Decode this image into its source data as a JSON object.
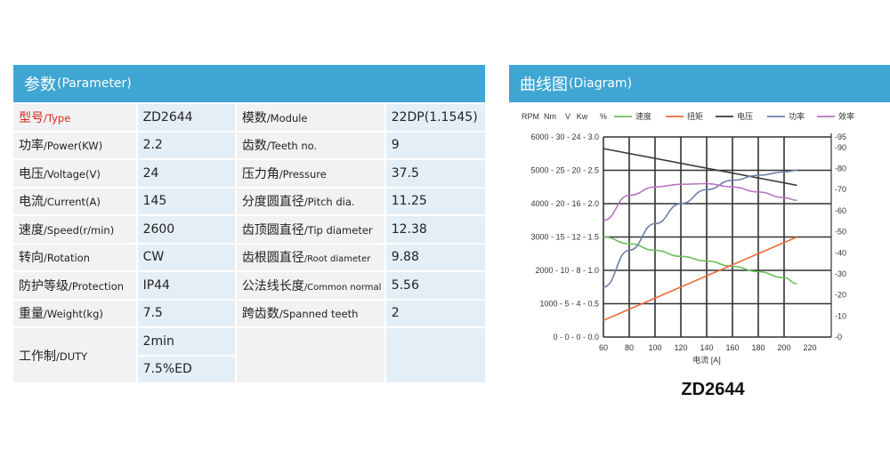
{
  "parameter_panel": {
    "title_zh": "参数",
    "title_en": "(Parameter)",
    "rows": [
      {
        "l1_zh": "型号",
        "l1_en": "/Type",
        "v1": "ZD2644",
        "l2_zh": "模数",
        "l2_en": "/Module",
        "v2": "22DP(1.1545)"
      },
      {
        "l1_zh": "功率",
        "l1_en": "/Power(KW)",
        "v1": "2.2",
        "l2_zh": "齿数",
        "l2_en": "/Teeth no.",
        "v2": "9"
      },
      {
        "l1_zh": "电压",
        "l1_en": "/Voltage(V)",
        "v1": "24",
        "l2_zh": "压力角",
        "l2_en": "/Pressure",
        "v2": "37.5"
      },
      {
        "l1_zh": "电流",
        "l1_en": "/Current(A)",
        "v1": "145",
        "l2_zh": "分度圆直径",
        "l2_en": "/Pitch dia.",
        "v2": "11.25"
      },
      {
        "l1_zh": "速度",
        "l1_en": "/Speed(r/min)",
        "v1": "2600",
        "l2_zh": "齿顶圆直径",
        "l2_en": "/Tip diameter",
        "v2": "12.38"
      },
      {
        "l1_zh": "转向",
        "l1_en": "/Rotation",
        "v1": "CW",
        "l2_zh": "齿根圆直径",
        "l2_en": "/Root diameter",
        "v2": "9.88"
      },
      {
        "l1_zh": "防护等级",
        "l1_en": "/Protection",
        "v1": "IP44",
        "l2_zh": "公法线长度",
        "l2_en": "/Common normal",
        "v2": "5.56"
      },
      {
        "l1_zh": "重量",
        "l1_en": "/Weight(kg)",
        "v1": "7.5",
        "l2_zh": "跨齿数",
        "l2_en": "/Spanned teeth",
        "v2": "2"
      }
    ],
    "duty": {
      "label_zh": "工作制",
      "label_en": "/DUTY",
      "v_a": "2min",
      "v_b": "7.5%ED"
    }
  },
  "diagram_panel": {
    "title_zh": "曲线图",
    "title_en": "(Diagram)",
    "caption": "ZD2644"
  },
  "chart_data": {
    "type": "line",
    "xlabel": "电流 [A]",
    "x_ticks": [
      60,
      80,
      100,
      120,
      140,
      160,
      180,
      200,
      220
    ],
    "xlim": [
      60,
      220
    ],
    "left_axis_header": [
      "RPM",
      "Nm",
      "V",
      "Kw",
      "%"
    ],
    "left_tick_labels": [
      "6000 - 30 - 24 - 3.0",
      "5000 - 25 - 20 - 2.5",
      "4000 - 20 - 16 - 2.0",
      "3000 - 15 - 12 - 1.5",
      "2000 - 10 - 8 - 1.0",
      "1000 - 5 - 4 - 0.5",
      "0 - 0 - 0 - 0.0"
    ],
    "left_ticks_rpm": [
      6000,
      5000,
      4000,
      3000,
      2000,
      1000,
      0
    ],
    "right_ticks": [
      0,
      10,
      20,
      30,
      40,
      50,
      60,
      70,
      80,
      90,
      95
    ],
    "right_tick_labels": [
      "-0",
      "-10",
      "-20",
      "-30",
      "-40",
      "-50",
      "-60",
      "-70",
      "-80",
      "-90",
      "-95"
    ],
    "legend_position": "top",
    "series": [
      {
        "name": "速度",
        "color": "#6cbf5a",
        "x": [
          60,
          80,
          100,
          120,
          140,
          160,
          180,
          200,
          210
        ],
        "y_rpm": [
          3000,
          2800,
          2600,
          2420,
          2280,
          2120,
          1960,
          1780,
          1600
        ]
      },
      {
        "name": "扭矩",
        "color": "#ee6a3a",
        "x": [
          60,
          210
        ],
        "y_rpm": [
          500,
          3000
        ]
      },
      {
        "name": "电压",
        "color": "#3a3a3a",
        "x": [
          60,
          210
        ],
        "y_rpm": [
          5650,
          4550
        ]
      },
      {
        "name": "功率",
        "color": "#6f7fa8",
        "x": [
          60,
          80,
          100,
          120,
          140,
          160,
          180,
          200,
          210
        ],
        "y_rpm": [
          1500,
          2600,
          3400,
          4000,
          4420,
          4700,
          4850,
          4950,
          5000
        ]
      },
      {
        "name": "效率",
        "color": "#b872bf",
        "x": [
          60,
          80,
          100,
          120,
          140,
          160,
          180,
          200,
          210
        ],
        "y_rpm": [
          3500,
          4250,
          4500,
          4580,
          4600,
          4500,
          4350,
          4180,
          4100
        ]
      }
    ]
  }
}
